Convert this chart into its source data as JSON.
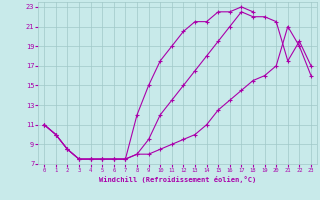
{
  "xlabel": "Windchill (Refroidissement éolien,°C)",
  "bg_color": "#c8eaea",
  "grid_color": "#a0c8c8",
  "line_color": "#aa00aa",
  "xlim": [
    -0.5,
    23.5
  ],
  "ylim": [
    7,
    23.5
  ],
  "yticks": [
    7,
    9,
    11,
    13,
    15,
    17,
    19,
    21,
    23
  ],
  "xticks": [
    0,
    1,
    2,
    3,
    4,
    5,
    6,
    7,
    8,
    9,
    10,
    11,
    12,
    13,
    14,
    15,
    16,
    17,
    18,
    19,
    20,
    21,
    22,
    23
  ],
  "line1_x": [
    0,
    1,
    2,
    3,
    4,
    5,
    6,
    7,
    8,
    9,
    10,
    11,
    12,
    13,
    14,
    15,
    16,
    17,
    18
  ],
  "line1_y": [
    11,
    10,
    8.5,
    7.5,
    7.5,
    7.5,
    7.5,
    7.5,
    12,
    15,
    17.5,
    19,
    20.5,
    21.5,
    21.5,
    22.5,
    22.5,
    23,
    22.5
  ],
  "line2_x": [
    0,
    1,
    2,
    3,
    4,
    5,
    6,
    7,
    8,
    9,
    10,
    11,
    12,
    13,
    14,
    15,
    16,
    17,
    18,
    19,
    20,
    21,
    22,
    23
  ],
  "line2_y": [
    11,
    10,
    8.5,
    7.5,
    7.5,
    7.5,
    7.5,
    7.5,
    8,
    8,
    8.5,
    9,
    9.5,
    10,
    11,
    12.5,
    13.5,
    14.5,
    15.5,
    16,
    17,
    21,
    19,
    16
  ],
  "line3_x": [
    0,
    1,
    2,
    3,
    4,
    5,
    6,
    7,
    8,
    9,
    10,
    11,
    12,
    13,
    14,
    15,
    16,
    17,
    18,
    19,
    20,
    21,
    22,
    23
  ],
  "line3_y": [
    11,
    10,
    8.5,
    7.5,
    7.5,
    7.5,
    7.5,
    7.5,
    8,
    9.5,
    12,
    13.5,
    15,
    16.5,
    18,
    19.5,
    21,
    22.5,
    22,
    22,
    21.5,
    17.5,
    19.5,
    17
  ]
}
